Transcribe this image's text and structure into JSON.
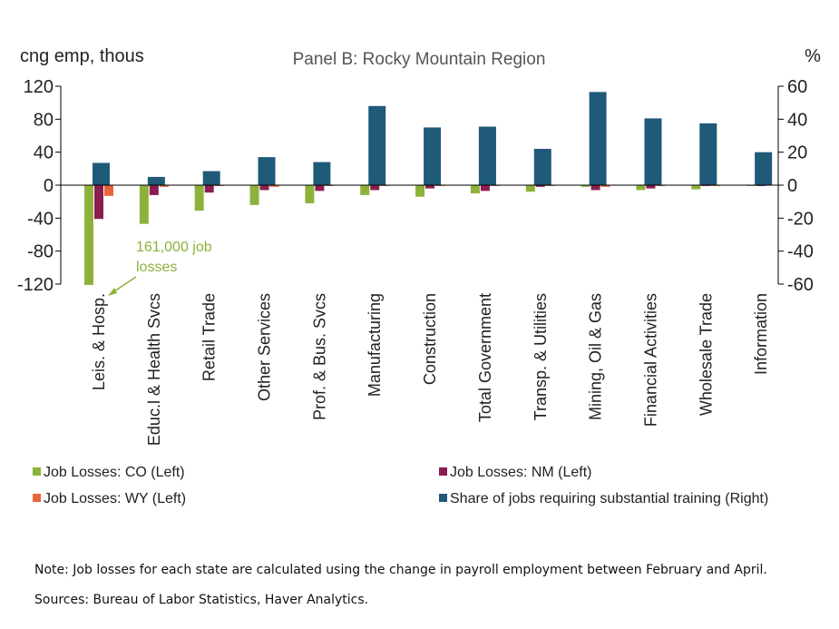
{
  "chart_data": {
    "type": "bar",
    "title": "Panel B: Rocky Mountain Region",
    "ylabel_left": "cng emp, thous",
    "ylabel_right": "%",
    "y_left_lim": [
      -120,
      120
    ],
    "y_right_lim": [
      -60,
      60
    ],
    "y_left_ticks": [
      120,
      80,
      40,
      0,
      -40,
      -80,
      -120
    ],
    "y_right_ticks": [
      60,
      40,
      20,
      0,
      -20,
      -40,
      -60
    ],
    "y_left_tick_labels": [
      "120",
      "80",
      "40",
      "0",
      "-40",
      "-80",
      "-120"
    ],
    "y_right_tick_labels": [
      "60",
      "40",
      "20",
      "0",
      "-20",
      "-40",
      "-60"
    ],
    "grid": false,
    "categories": [
      "Leis. & Hosp.",
      "Educ.l & Health Svcs",
      "Retail Trade",
      "Other Services",
      "Prof. & Bus. Svcs",
      "Manufacturing",
      "Construction",
      "Total Government",
      "Transp. & Utilities",
      "Mining, Oil & Gas",
      "Financial Activities",
      "Wholesale Trade",
      "Information"
    ],
    "series": [
      {
        "name": "Job Losses: CO (Left)",
        "axis": "left",
        "color": "#8cb23c",
        "values": [
          -121,
          -47,
          -31,
          -24,
          -22,
          -12,
          -14,
          -10,
          -8,
          -2,
          -6,
          -5,
          -1
        ]
      },
      {
        "name": "Job Losses: NM (Left)",
        "axis": "left",
        "color": "#8c1d50",
        "values": [
          -41,
          -12,
          -9,
          -6,
          -7,
          -6,
          -4,
          -7,
          -2,
          -6,
          -4,
          -1,
          -1
        ]
      },
      {
        "name": "Job Losses: WY (Left)",
        "axis": "left",
        "color": "#e8643a",
        "values": [
          -13,
          -2,
          -1,
          -2,
          -1,
          -1,
          -1,
          -1,
          -1,
          -2,
          -1,
          -1,
          0
        ]
      },
      {
        "name": "Share of jobs requiring substantial training (Right)",
        "axis": "right",
        "color": "#1f5a78",
        "values": [
          13.5,
          5,
          8.5,
          17,
          14,
          48,
          35,
          35.5,
          22,
          56.5,
          40.5,
          37.5,
          20
        ]
      }
    ],
    "legend_position": "bottom",
    "annotation": {
      "text_line1": "161,000 job",
      "text_line2": "losses",
      "color": "#8cb23c"
    }
  },
  "notes": {
    "note": "Note: Job losses for each state are calculated using the change in payroll employment between February and April.",
    "sources": "Sources: Bureau of Labor Statistics, Haver Analytics."
  }
}
